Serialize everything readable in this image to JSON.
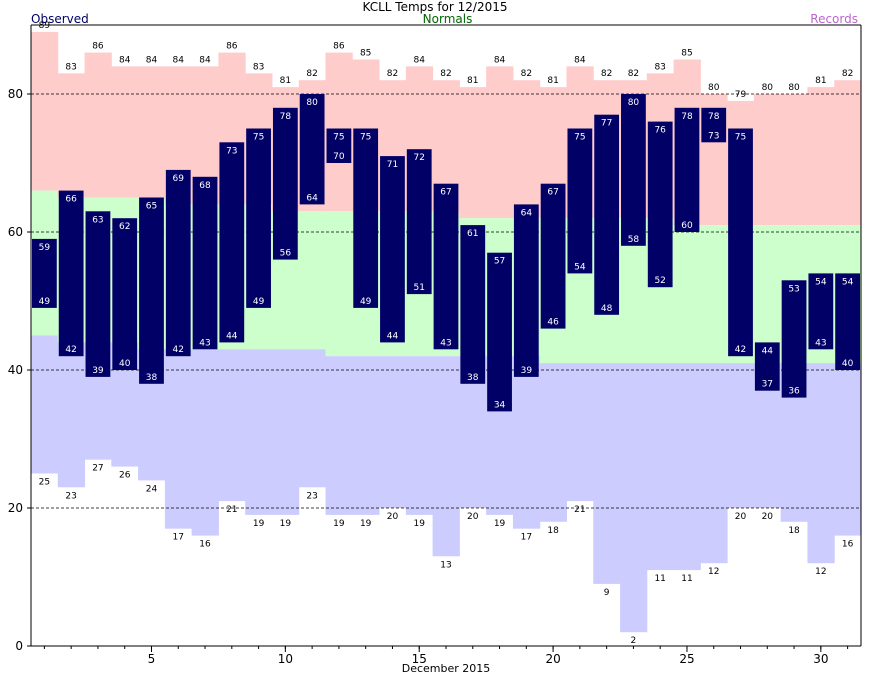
{
  "header": {
    "title": "KCLL Temps for 12/2015",
    "legend_observed": "Observed",
    "legend_normals": "Normals",
    "legend_records": "Records"
  },
  "colors": {
    "observed": "#000066",
    "normals_text": "#006600",
    "records_text": "#bb66cc",
    "record_high_band": "#ffcccc",
    "normal_band": "#ccffcc",
    "record_low_band": "#ccccff"
  },
  "chart_data": {
    "type": "bar",
    "title": "KCLL Temps for 12/2015",
    "xlabel": "December 2015",
    "ylabel": "",
    "x": [
      1,
      2,
      3,
      4,
      5,
      6,
      7,
      8,
      9,
      10,
      11,
      12,
      13,
      14,
      15,
      16,
      17,
      18,
      19,
      20,
      21,
      22,
      23,
      24,
      25,
      26,
      27,
      28,
      29,
      30,
      31
    ],
    "xticks": [
      5,
      10,
      15,
      20,
      25,
      30
    ],
    "yticks": [
      0,
      20,
      40,
      60,
      80
    ],
    "ylim": [
      0,
      90
    ],
    "grid_lines": [
      20,
      40,
      60,
      80
    ],
    "series": [
      {
        "name": "Observed",
        "high": [
          59,
          66,
          63,
          62,
          65,
          69,
          68,
          73,
          75,
          78,
          80,
          75,
          75,
          71,
          72,
          67,
          61,
          57,
          64,
          67,
          75,
          77,
          80,
          76,
          78,
          78,
          75,
          44,
          53,
          54,
          54
        ],
        "low": [
          49,
          42,
          39,
          40,
          38,
          42,
          43,
          44,
          49,
          56,
          64,
          70,
          49,
          44,
          51,
          43,
          38,
          34,
          39,
          46,
          54,
          48,
          58,
          52,
          60,
          73,
          42,
          37,
          36,
          43,
          40
        ]
      },
      {
        "name": "Normals",
        "high": [
          66,
          65,
          65,
          65,
          65,
          64,
          64,
          64,
          64,
          63,
          63,
          63,
          63,
          63,
          63,
          63,
          62,
          62,
          62,
          62,
          62,
          62,
          62,
          62,
          61,
          61,
          61,
          61,
          61,
          61,
          61
        ],
        "low": [
          45,
          44,
          44,
          44,
          43,
          43,
          43,
          43,
          43,
          43,
          43,
          42,
          42,
          42,
          42,
          42,
          42,
          42,
          42,
          41,
          41,
          41,
          41,
          41,
          41,
          41,
          41,
          41,
          41,
          41,
          41
        ]
      },
      {
        "name": "Records",
        "high": [
          89,
          83,
          86,
          84,
          84,
          84,
          84,
          86,
          83,
          81,
          82,
          86,
          85,
          82,
          84,
          82,
          81,
          84,
          82,
          81,
          84,
          82,
          82,
          83,
          85,
          80,
          79,
          80,
          80,
          81,
          82
        ],
        "low": [
          25,
          23,
          27,
          26,
          24,
          17,
          16,
          21,
          19,
          19,
          23,
          19,
          19,
          20,
          19,
          13,
          20,
          19,
          17,
          18,
          21,
          9,
          2,
          11,
          11,
          12,
          20,
          20,
          18,
          12,
          16
        ]
      }
    ]
  }
}
